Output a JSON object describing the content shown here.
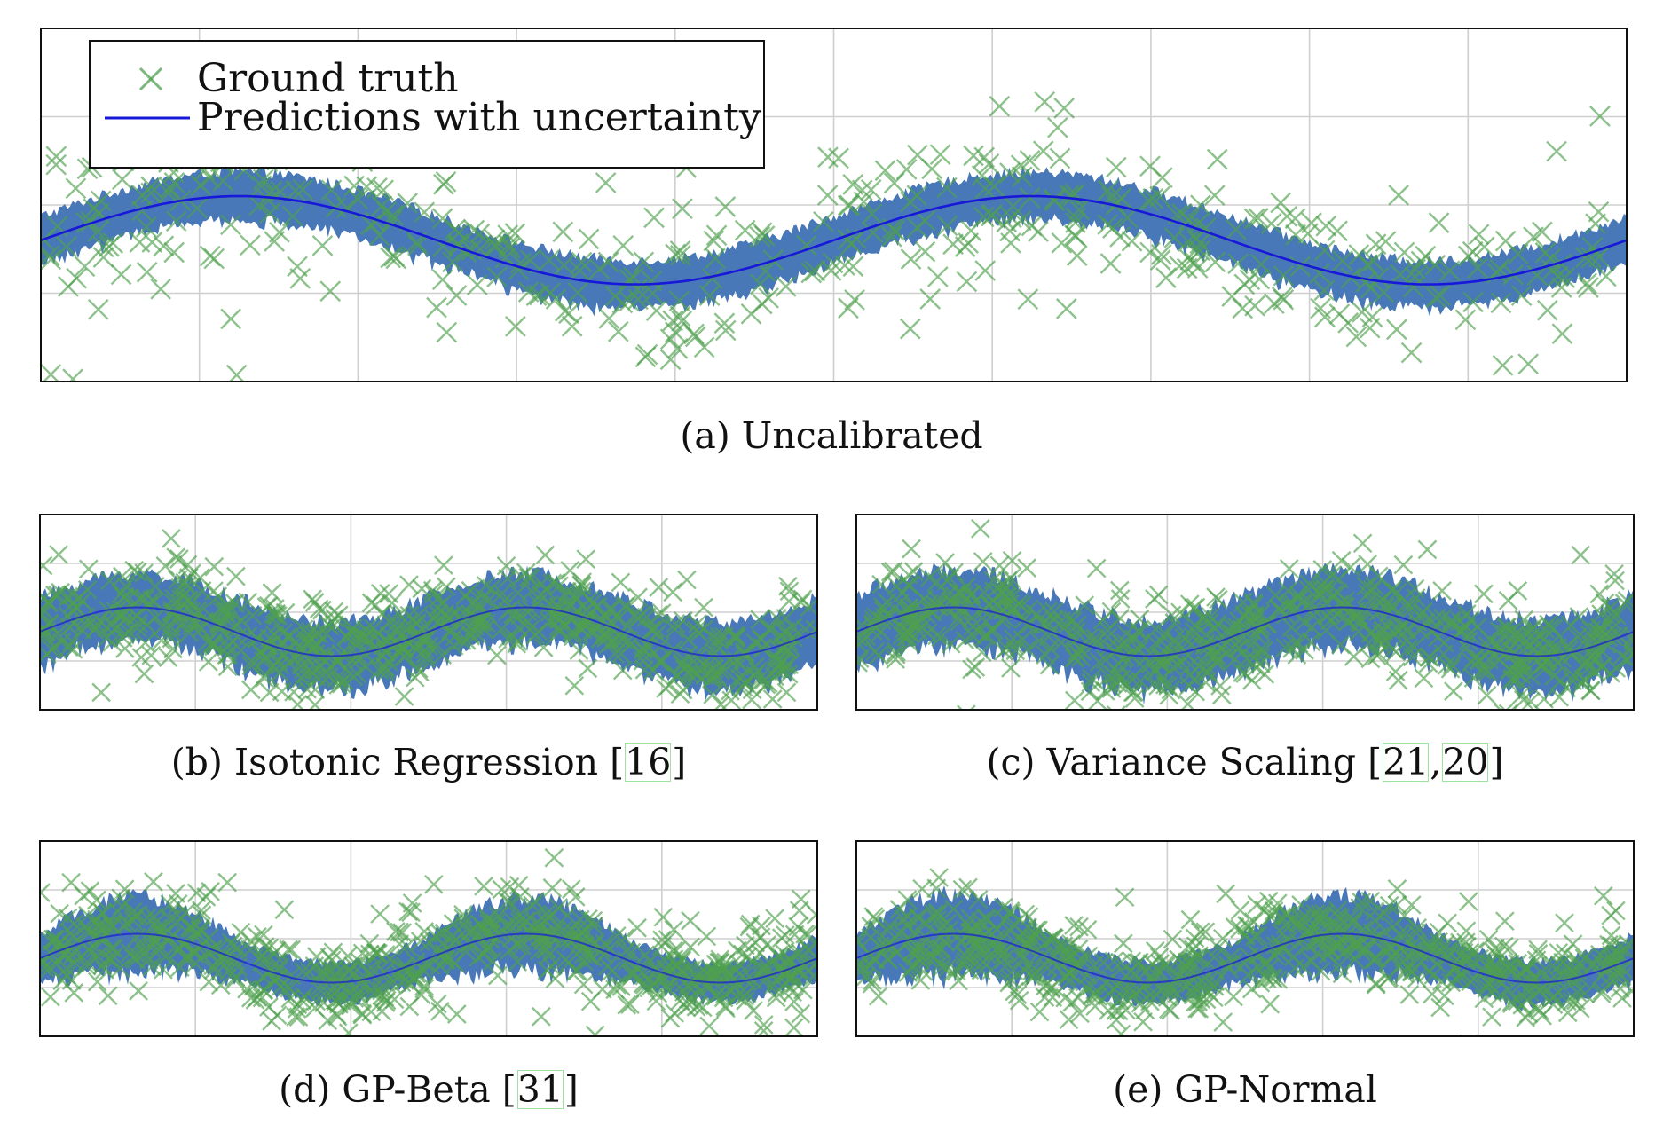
{
  "colors": {
    "ground_truth": "#4ea04e",
    "prediction_line": "#1818d8",
    "uncertainty_band": "#4878b8",
    "grid": "#cfcfcf",
    "axis": "#111111",
    "citation_box": "#9ee39e"
  },
  "legend": {
    "ground_truth_label": "Ground truth",
    "prediction_label": "Predictions with uncertainty"
  },
  "captions": {
    "a": {
      "text": "(a) Uncalibrated",
      "cites": []
    },
    "b": {
      "text": "(b) Isotonic Regression",
      "cites": [
        "16"
      ]
    },
    "c": {
      "text": "(c) Variance Scaling",
      "cites": [
        "21",
        "20"
      ]
    },
    "d": {
      "text": "(d) GP-Beta",
      "cites": [
        "31"
      ]
    },
    "e": {
      "text": "(e) GP-Normal",
      "cites": []
    }
  },
  "chart_data": [
    {
      "id": "a",
      "type": "line",
      "title": "(a) Uncalibrated",
      "x_range": [
        0,
        1
      ],
      "ylim": [
        -1.6,
        2.4
      ],
      "grid": true,
      "legend": "top-left",
      "mean_curve": {
        "form": "sine",
        "amplitude": 0.5,
        "periods": 2,
        "phase": 0.0
      },
      "uncertainty_halfwidth": 0.28,
      "series": [
        {
          "name": "Ground truth",
          "type": "scatter",
          "marker": "x",
          "n": 450,
          "spread": 0.55
        },
        {
          "name": "Predictions with uncertainty",
          "type": "line"
        }
      ]
    },
    {
      "id": "b",
      "type": "line",
      "title": "(b) Isotonic Regression",
      "x_range": [
        0,
        1
      ],
      "ylim": [
        -1.6,
        2.4
      ],
      "grid": true,
      "mean_curve": {
        "form": "sine",
        "amplitude": 0.5,
        "periods": 2,
        "phase": 0.0
      },
      "uncertainty_halfwidth": 0.72,
      "series": [
        {
          "type": "scatter",
          "marker": "x",
          "n": 650,
          "spread": 0.55
        },
        {
          "type": "line"
        }
      ]
    },
    {
      "id": "c",
      "type": "line",
      "title": "(c) Variance Scaling",
      "x_range": [
        0,
        1
      ],
      "ylim": [
        -1.6,
        2.4
      ],
      "grid": true,
      "mean_curve": {
        "form": "sine",
        "amplitude": 0.5,
        "periods": 2,
        "phase": 0.0
      },
      "uncertainty_halfwidth": 0.78,
      "series": [
        {
          "type": "scatter",
          "marker": "x",
          "n": 650,
          "spread": 0.55
        },
        {
          "type": "line"
        }
      ]
    },
    {
      "id": "d",
      "type": "line",
      "title": "(d) GP-Beta",
      "x_range": [
        0,
        1
      ],
      "ylim": [
        -1.6,
        2.4
      ],
      "grid": true,
      "mean_curve": {
        "form": "sine",
        "amplitude": 0.5,
        "periods": 2,
        "phase": 0.0
      },
      "uncertainty_halfwidth": 0.55,
      "series": [
        {
          "type": "scatter",
          "marker": "x",
          "n": 650,
          "spread": 0.55
        },
        {
          "type": "line"
        }
      ]
    },
    {
      "id": "e",
      "type": "line",
      "title": "(e) GP-Normal",
      "x_range": [
        0,
        1
      ],
      "ylim": [
        -1.6,
        2.4
      ],
      "grid": true,
      "mean_curve": {
        "form": "sine",
        "amplitude": 0.5,
        "periods": 2,
        "phase": 0.0
      },
      "uncertainty_halfwidth": 0.6,
      "series": [
        {
          "type": "scatter",
          "marker": "x",
          "n": 650,
          "spread": 0.55
        },
        {
          "type": "line"
        }
      ]
    }
  ]
}
